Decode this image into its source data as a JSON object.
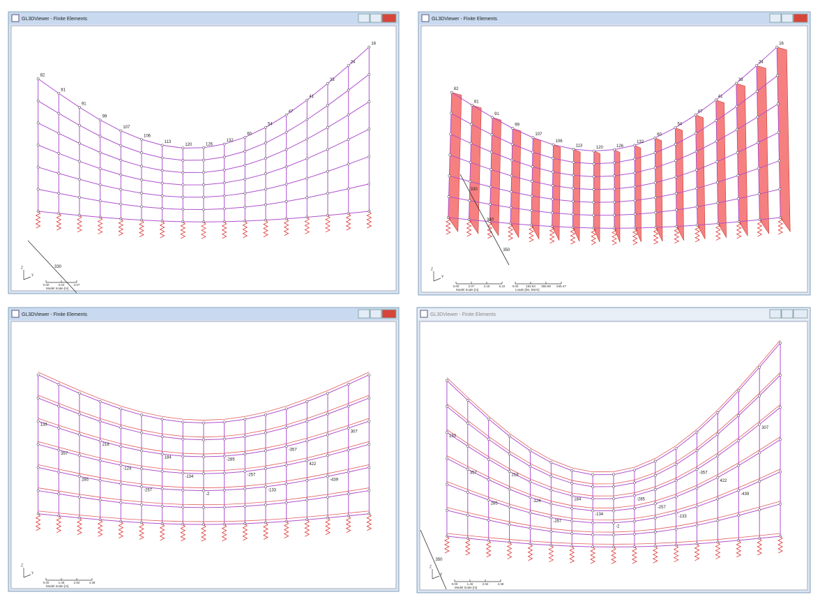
{
  "windows": [
    {
      "title": "GL3DViewer - Finite Elements",
      "node_labels": [
        "82",
        "81",
        "91",
        "99",
        "107",
        "106",
        "113",
        "120",
        "126",
        "132",
        "60",
        "54",
        "47",
        "41",
        "33",
        "24",
        "16"
      ],
      "value_labels": [],
      "scale_labels": [
        "0.00",
        "2.04",
        "4.07"
      ],
      "scale_caption": "Model Scale [m]",
      "axis_labels": [
        "Z",
        "Y"
      ],
      "line_labels": [
        "330"
      ]
    },
    {
      "title": "GL3DViewer - Finite Elements",
      "node_labels": [
        "82",
        "81",
        "91",
        "99",
        "107",
        "106",
        "113",
        "120",
        "126",
        "132",
        "60",
        "54",
        "47",
        "41",
        "33",
        "24",
        "16"
      ],
      "value_labels": [],
      "scale_labels": [
        "0.00",
        "2.07",
        "4.15",
        "6.22"
      ],
      "scale_caption": "Model Scale [m]",
      "load_scale_labels": [
        "0.00",
        "182.84",
        "365.68",
        "548.47"
      ],
      "load_scale_caption": "Loads [kN, kN/m]",
      "axis_labels": [
        "Z",
        "Y"
      ],
      "line_labels": [
        "330",
        "340",
        "350"
      ]
    },
    {
      "title": "GL3DViewer - Finite Elements",
      "node_labels": [],
      "value_labels": [
        "133",
        "357",
        "285",
        "218",
        "-124",
        "-257",
        "184",
        "-134",
        "-2",
        "-285",
        "-257",
        "-133",
        "-357",
        "422",
        "-439",
        "307"
      ],
      "scale_labels": [
        "0.00",
        "1.46",
        "2.92",
        "4.38"
      ],
      "scale_caption": "Model Scale [m]",
      "axis_labels": [
        "Z",
        "Y"
      ],
      "line_labels": []
    },
    {
      "title": "GL3DViewer - Finite Elements",
      "node_labels": [],
      "value_labels": [
        "133",
        "357",
        "285",
        "218",
        "-124",
        "-257",
        "184",
        "-134",
        "-2",
        "-285",
        "-257",
        "-133",
        "-357",
        "422",
        "-439",
        "307"
      ],
      "scale_labels": [
        "0.00",
        "1.46",
        "2.92",
        "4.38"
      ],
      "scale_caption": "Model Scale [m]",
      "axis_labels": [
        "Z",
        "Y"
      ],
      "line_labels": [
        "350"
      ]
    }
  ]
}
